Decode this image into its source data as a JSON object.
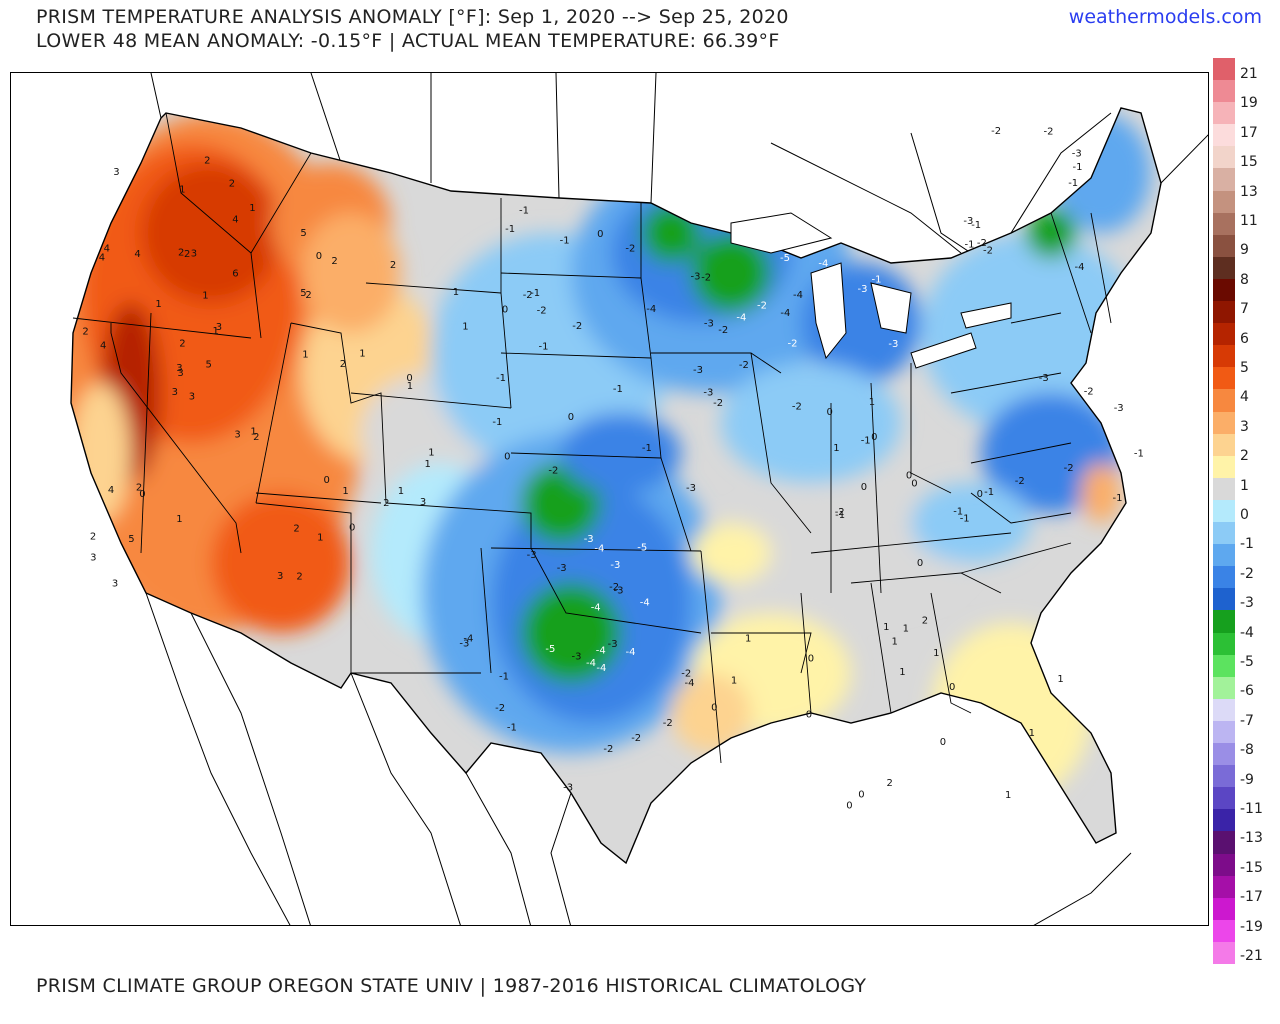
{
  "header": {
    "title_line1": "PRISM TEMPERATURE ANALYSIS ANOMALY [°F]: Sep 1, 2020 --> Sep 25, 2020",
    "title_line2": "LOWER 48 MEAN ANOMALY: -0.15°F | ACTUAL MEAN TEMPERATURE: 66.39°F",
    "brand": "weathermodels.com"
  },
  "footer": {
    "credit": "PRISM CLIMATE GROUP OREGON STATE UNIV | 1987-2016 HISTORICAL CLIMATOLOGY"
  },
  "legend": {
    "colors": [
      "#e0606a",
      "#ee8a94",
      "#f6b3b8",
      "#fcdcdc",
      "#f2d4ca",
      "#d9b0a3",
      "#c4927f",
      "#a8715f",
      "#8a5140",
      "#5e2e20",
      "#6a0a00",
      "#8f1600",
      "#b52400",
      "#d73a05",
      "#f15a14",
      "#f7883f",
      "#fbae68",
      "#fdd390",
      "#fff3a8",
      "#d9d9d9",
      "#b4eafc",
      "#8ccbf6",
      "#5ea8ef",
      "#3a83e6",
      "#1e62cf",
      "#16a01e",
      "#2cc035",
      "#5ce35f",
      "#a2f29a",
      "#dcdaf7",
      "#bcb5f2",
      "#9a8ee6",
      "#7a6bd7",
      "#5b46c4",
      "#3a23a8",
      "#5a1070",
      "#7d0c8a",
      "#a50fa8",
      "#cc18cf",
      "#ec46ea",
      "#f47ae8"
    ],
    "labels": [
      "21",
      "19",
      "17",
      "15",
      "13",
      "11",
      "9",
      "8",
      "7",
      "6",
      "5",
      "4",
      "3",
      "2",
      "1",
      "0",
      "-1",
      "-2",
      "-3",
      "-4",
      "-5",
      "-6",
      "-7",
      "-8",
      "-9",
      "-11",
      "-13",
      "-15",
      "-17",
      "-19",
      "-21"
    ]
  },
  "map_labels": {
    "west": [
      "3",
      "4",
      "3",
      "2",
      "1",
      "0",
      "2",
      "3",
      "4",
      "5",
      "3",
      "2",
      "4",
      "5",
      "3",
      "6",
      "3",
      "2",
      "1",
      "4",
      "1",
      "3",
      "5",
      "2",
      "3",
      "2",
      "4",
      "1",
      "2",
      "3",
      "5",
      "3",
      "1",
      "2",
      "4",
      "1",
      "2",
      "3",
      "2",
      "1",
      "2"
    ],
    "rockies": [
      "1",
      "2",
      "1",
      "0",
      "1",
      "0",
      "1",
      "2",
      "1",
      "0",
      "1",
      "2",
      "1",
      "3",
      "1",
      "2",
      "0",
      "1",
      "1",
      "2"
    ],
    "plains": [
      "-1",
      "0",
      "-1",
      "-2",
      "-1",
      "0",
      "-1",
      "-2",
      "-1",
      "0",
      "-2",
      "-1",
      "-2",
      "0",
      "-1",
      "-2",
      "-1"
    ],
    "green_west": [
      "-3",
      "-4",
      "-4",
      "-5",
      "-3",
      "-4",
      "-4",
      "-5",
      "-4",
      "-4",
      "-4"
    ],
    "south_central": [
      "-2",
      "-3",
      "-4",
      "-3",
      "-2",
      "-3",
      "-2",
      "-4",
      "-3",
      "-2",
      "-3",
      "-1",
      "-3",
      "-2",
      "-3",
      "-2",
      "-1"
    ],
    "midwest": [
      "-3",
      "-2",
      "-4",
      "-3",
      "-2",
      "-4",
      "-2",
      "-3",
      "-3",
      "-1",
      "-2",
      "-4",
      "-3",
      "-2"
    ],
    "great_lakes": [
      "-4",
      "-3",
      "-4",
      "-5",
      "-3",
      "-2",
      "-3",
      "-2",
      "-1"
    ],
    "ohio_valley": [
      "0",
      "-1",
      "0",
      "-1",
      "1",
      "0",
      "-1",
      "0",
      "-2",
      "-1",
      "0",
      "0",
      "1",
      "-1",
      "0"
    ],
    "southeast": [
      "0",
      "1",
      "0",
      "1",
      "2",
      "1",
      "1",
      "0",
      "1",
      "0",
      "1",
      "2",
      "1",
      "1",
      "0",
      "1",
      "0",
      "1",
      "0"
    ],
    "northeast": [
      "-2",
      "-1",
      "-2",
      "-3",
      "-1",
      "-2",
      "-1",
      "-3",
      "-2",
      "-1",
      "-3",
      "-4",
      "-2",
      "-1",
      "-2",
      "-3",
      "-2",
      "-1"
    ]
  }
}
